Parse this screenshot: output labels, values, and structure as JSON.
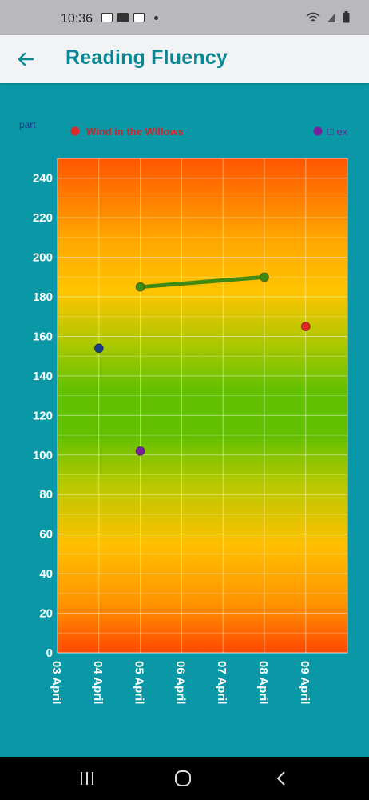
{
  "status": {
    "time": "10:36"
  },
  "header": {
    "title": "Reading Fluency"
  },
  "colors": {
    "accent": "#0a8795",
    "background": "#0b98a6"
  },
  "legend": {
    "items": [
      {
        "label": "part",
        "color": "#1b3a8c",
        "marker": "none"
      },
      {
        "label": "Wind in the Willows",
        "color": "#e02828",
        "marker": "circle"
      },
      {
        "label": "□ ex",
        "color": "#7a1f9c",
        "marker": "circle"
      }
    ]
  },
  "chart_data": {
    "type": "scatter",
    "title": "",
    "xlabel": "",
    "ylabel": "",
    "x_categories": [
      "03 April",
      "04 April",
      "05 April",
      "06 April",
      "07 April",
      "08 April",
      "09 April"
    ],
    "ylim": [
      0,
      250
    ],
    "yticks": [
      0,
      20,
      40,
      60,
      80,
      100,
      120,
      140,
      160,
      180,
      200,
      220,
      240
    ],
    "grid": true,
    "legend_position": "top",
    "background_gradient": [
      "#ff5a00",
      "#ffb000",
      "#62c000",
      "#62c000",
      "#ffb000",
      "#ff5a00"
    ],
    "series": [
      {
        "name": "part",
        "color": "#1b3a8c",
        "mode": "markers",
        "points": [
          {
            "x": "04 April",
            "y": 154
          }
        ]
      },
      {
        "name": "Wind in the Willows",
        "color": "#e02828",
        "mode": "markers",
        "points": [
          {
            "x": "09 April",
            "y": 165
          }
        ]
      },
      {
        "name": "□ ex",
        "color": "#7a1f9c",
        "mode": "markers",
        "points": [
          {
            "x": "05 April",
            "y": 102
          }
        ]
      },
      {
        "color": "#3f8a12",
        "mode": "lines+markers",
        "points": [
          {
            "x": "05 April",
            "y": 185
          },
          {
            "x": "08 April",
            "y": 190
          }
        ]
      }
    ]
  }
}
